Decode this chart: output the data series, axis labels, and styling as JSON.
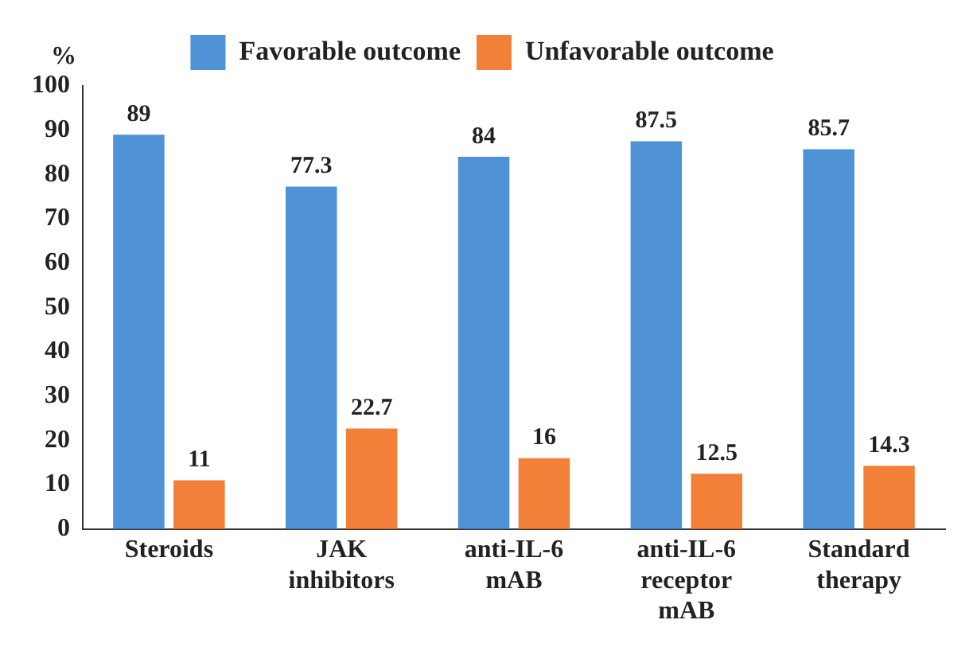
{
  "chart_data": {
    "type": "bar",
    "ylabel": "%",
    "categories": [
      "Steroids",
      "JAK inhibitors",
      "anti-IL-6 mAB",
      "anti-IL-6 receptor mAB",
      "Standard therapy"
    ],
    "series": [
      {
        "name": "Favorable outcome",
        "color": "#4f93d6",
        "values": [
          89,
          77.3,
          84,
          87.5,
          85.7
        ]
      },
      {
        "name": "Unfavorable outcome",
        "color": "#f28038",
        "values": [
          11,
          22.7,
          16,
          12.5,
          14.3
        ]
      }
    ],
    "ylim": [
      0,
      100
    ],
    "yticks": [
      0,
      10,
      20,
      30,
      40,
      50,
      60,
      70,
      80,
      90,
      100
    ],
    "data_labels": true,
    "grid": false,
    "legend": "top"
  }
}
